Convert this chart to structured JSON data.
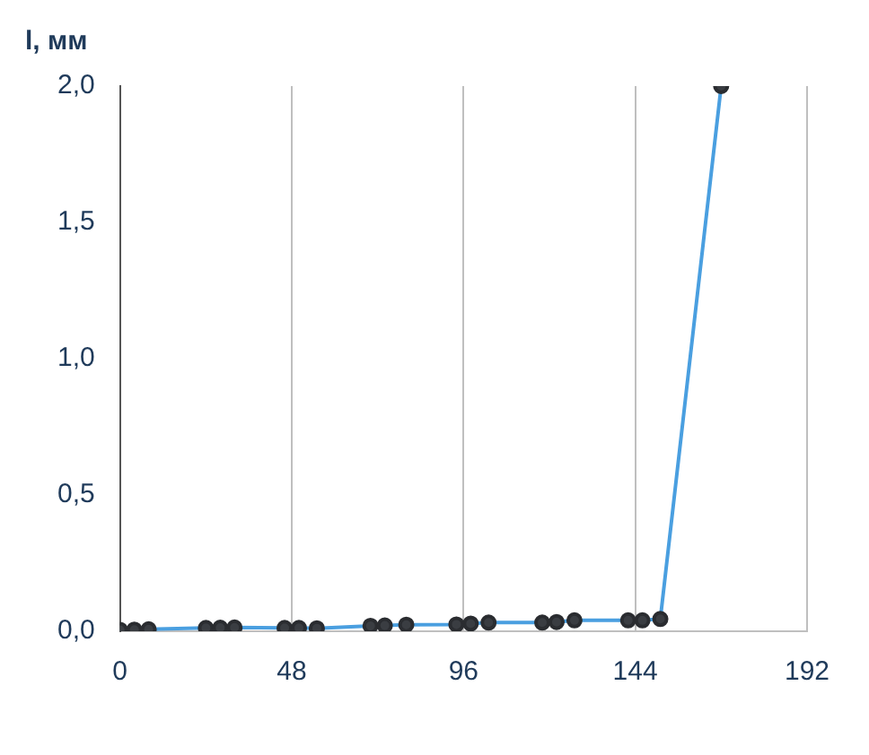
{
  "chart_data": {
    "type": "line",
    "ylabel": "l, мм",
    "x": [
      0,
      4,
      8,
      24,
      28,
      32,
      46,
      50,
      55,
      70,
      74,
      80,
      94,
      98,
      103,
      118,
      122,
      127,
      142,
      146,
      151,
      168
    ],
    "series": [
      {
        "color": "#4a9fe0",
        "values": [
          0.005,
          0.006,
          0.007,
          0.012,
          0.013,
          0.014,
          0.012,
          0.012,
          0.011,
          0.02,
          0.021,
          0.024,
          0.025,
          0.028,
          0.032,
          0.032,
          0.034,
          0.04,
          0.04,
          0.04,
          0.045,
          2.0
        ]
      }
    ],
    "marker": "circle",
    "line_style": "solid",
    "grid": "x",
    "xlim": [
      0,
      192
    ],
    "xticks": [
      0,
      48,
      96,
      144,
      192
    ],
    "ylim": [
      0,
      2
    ],
    "yticks": [
      {
        "value": 0,
        "label": "0,0"
      },
      {
        "value": 0.5,
        "label": "0,5"
      },
      {
        "value": 1,
        "label": "1,0"
      },
      {
        "value": 1.5,
        "label": "1,5"
      },
      {
        "value": 2,
        "label": "2,0"
      }
    ]
  }
}
